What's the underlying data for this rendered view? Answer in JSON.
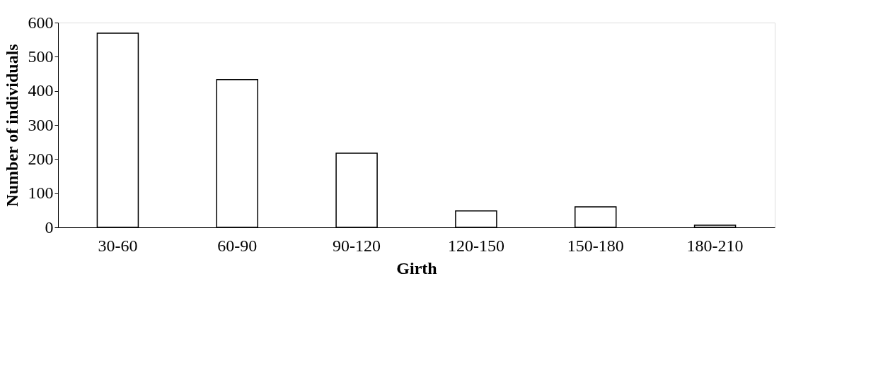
{
  "chart_data": {
    "type": "bar",
    "xlabel": "Girth",
    "ylabel": "Number of individuals",
    "categories": [
      "30-60",
      "60-90",
      "90-120",
      "120-150",
      "150-180",
      "180-210"
    ],
    "values": [
      569,
      433,
      217,
      48,
      60,
      6
    ],
    "color": "#ffffff",
    "ylim": [
      0,
      600
    ],
    "yticks": [
      0,
      100,
      200,
      300,
      400,
      500,
      600
    ],
    "grid": false
  }
}
